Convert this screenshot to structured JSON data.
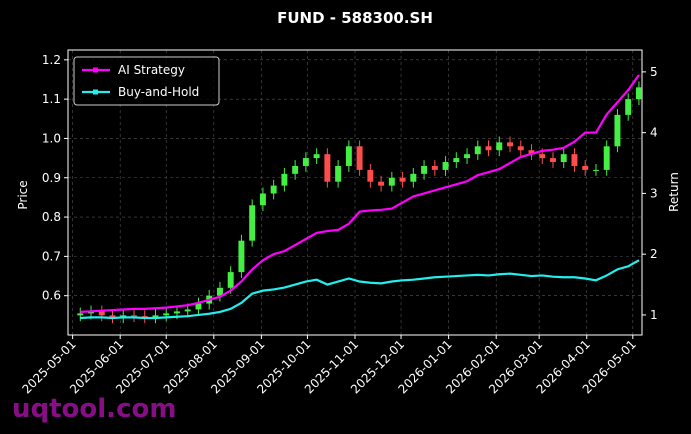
{
  "chart_data": {
    "type": "candlestick",
    "title": "FUND - 588300.SH",
    "ylabel": "Price",
    "y2label": "Return",
    "watermark": "uqtool.com",
    "up_color": "#44ee44",
    "down_color": "#ff4d4d",
    "grid": true,
    "legend": "upper left",
    "xlim": [
      "2025-04-28",
      "2026-05-07"
    ],
    "xticks": [
      "2025-05-01",
      "2025-06-01",
      "2025-07-01",
      "2025-08-01",
      "2025-09-01",
      "2025-10-01",
      "2025-11-01",
      "2025-12-01",
      "2026-01-01",
      "2026-02-01",
      "2026-03-01",
      "2026-04-01",
      "2026-05-01"
    ],
    "ylim": [
      0.5,
      1.225
    ],
    "yticks": [
      0.6,
      0.7,
      0.8,
      0.9,
      {
        "value": 1,
        "label": "1.0"
      },
      1.1,
      1.2
    ],
    "y2lim": [
      0.67,
      5.36
    ],
    "y2ticks": [
      1,
      2,
      3,
      4,
      5
    ],
    "x": [
      "2025-05-06",
      "2025-05-13",
      "2025-05-20",
      "2025-05-27",
      "2025-06-03",
      "2025-06-10",
      "2025-06-17",
      "2025-06-24",
      "2025-07-01",
      "2025-07-08",
      "2025-07-15",
      "2025-07-22",
      "2025-07-29",
      "2025-08-05",
      "2025-08-12",
      "2025-08-19",
      "2025-08-26",
      "2025-09-02",
      "2025-09-09",
      "2025-09-16",
      "2025-09-23",
      "2025-09-30",
      "2025-10-07",
      "2025-10-14",
      "2025-10-21",
      "2025-10-28",
      "2025-11-04",
      "2025-11-11",
      "2025-11-18",
      "2025-11-25",
      "2025-12-02",
      "2025-12-09",
      "2025-12-16",
      "2025-12-23",
      "2025-12-30",
      "2026-01-06",
      "2026-01-13",
      "2026-01-20",
      "2026-01-27",
      "2026-02-03",
      "2026-02-10",
      "2026-02-17",
      "2026-02-24",
      "2026-03-03",
      "2026-03-10",
      "2026-03-17",
      "2026-03-24",
      "2026-03-31",
      "2026-04-07",
      "2026-04-14",
      "2026-04-21",
      "2026-04-28",
      "2026-05-05"
    ],
    "open": [
      0.55,
      0.555,
      0.56,
      0.55,
      0.545,
      0.55,
      0.548,
      0.545,
      0.55,
      0.555,
      0.56,
      0.565,
      0.58,
      0.6,
      0.62,
      0.66,
      0.74,
      0.83,
      0.86,
      0.88,
      0.91,
      0.93,
      0.95,
      0.96,
      0.89,
      0.93,
      0.98,
      0.92,
      0.89,
      0.88,
      0.9,
      0.89,
      0.91,
      0.93,
      0.92,
      0.94,
      0.95,
      0.96,
      0.98,
      0.97,
      0.99,
      0.98,
      0.97,
      0.96,
      0.95,
      0.94,
      0.96,
      0.93,
      0.92,
      0.92,
      0.98,
      1.06,
      1.1
    ],
    "high": [
      0.57,
      0.575,
      0.575,
      0.565,
      0.565,
      0.565,
      0.563,
      0.565,
      0.57,
      0.575,
      0.58,
      0.595,
      0.615,
      0.635,
      0.675,
      0.755,
      0.845,
      0.875,
      0.895,
      0.925,
      0.945,
      0.965,
      0.975,
      0.975,
      0.945,
      0.995,
      0.995,
      0.935,
      0.905,
      0.915,
      0.915,
      0.925,
      0.945,
      0.945,
      0.955,
      0.965,
      0.975,
      0.995,
      0.995,
      1.005,
      1.005,
      0.995,
      0.985,
      0.975,
      0.965,
      0.975,
      0.975,
      0.945,
      0.935,
      0.995,
      1.075,
      1.115,
      1.145
    ],
    "low": [
      0.535,
      0.54,
      0.535,
      0.53,
      0.53,
      0.533,
      0.53,
      0.53,
      0.535,
      0.54,
      0.545,
      0.55,
      0.565,
      0.585,
      0.605,
      0.645,
      0.725,
      0.815,
      0.845,
      0.865,
      0.895,
      0.915,
      0.935,
      0.875,
      0.875,
      0.915,
      0.905,
      0.875,
      0.865,
      0.865,
      0.875,
      0.875,
      0.895,
      0.905,
      0.905,
      0.925,
      0.935,
      0.945,
      0.955,
      0.955,
      0.965,
      0.955,
      0.945,
      0.935,
      0.925,
      0.925,
      0.915,
      0.905,
      0.905,
      0.905,
      0.965,
      1.045,
      1.085
    ],
    "close": [
      0.555,
      0.56,
      0.55,
      0.545,
      0.55,
      0.548,
      0.545,
      0.55,
      0.555,
      0.56,
      0.565,
      0.58,
      0.6,
      0.62,
      0.66,
      0.74,
      0.83,
      0.86,
      0.88,
      0.91,
      0.93,
      0.95,
      0.96,
      0.89,
      0.93,
      0.98,
      0.92,
      0.89,
      0.88,
      0.9,
      0.89,
      0.91,
      0.93,
      0.92,
      0.94,
      0.95,
      0.96,
      0.98,
      0.97,
      0.99,
      0.98,
      0.97,
      0.96,
      0.95,
      0.94,
      0.96,
      0.93,
      0.92,
      0.92,
      0.98,
      1.06,
      1.1,
      1.13
    ],
    "series": [
      {
        "name": "AI Strategy",
        "color": "#ff00ff",
        "axis": "y2",
        "values": [
          1.05,
          1.06,
          1.07,
          1.08,
          1.09,
          1.1,
          1.1,
          1.11,
          1.12,
          1.14,
          1.16,
          1.2,
          1.25,
          1.3,
          1.4,
          1.55,
          1.75,
          1.9,
          2.0,
          2.05,
          2.15,
          2.25,
          2.35,
          2.38,
          2.4,
          2.5,
          2.7,
          2.72,
          2.73,
          2.75,
          2.85,
          2.95,
          3.0,
          3.05,
          3.1,
          3.15,
          3.2,
          3.3,
          3.35,
          3.4,
          3.5,
          3.6,
          3.65,
          3.7,
          3.72,
          3.75,
          3.85,
          4.0,
          4.0,
          4.3,
          4.5,
          4.7,
          4.95
        ]
      },
      {
        "name": "Buy-and-Hold",
        "color": "#22eeee",
        "axis": "y2",
        "values": [
          0.95,
          0.96,
          0.96,
          0.95,
          0.96,
          0.96,
          0.95,
          0.95,
          0.96,
          0.97,
          0.98,
          1.0,
          1.02,
          1.05,
          1.1,
          1.2,
          1.35,
          1.4,
          1.42,
          1.45,
          1.5,
          1.55,
          1.58,
          1.5,
          1.55,
          1.6,
          1.55,
          1.53,
          1.52,
          1.55,
          1.57,
          1.58,
          1.6,
          1.62,
          1.63,
          1.64,
          1.65,
          1.66,
          1.65,
          1.67,
          1.68,
          1.66,
          1.64,
          1.65,
          1.63,
          1.62,
          1.62,
          1.6,
          1.57,
          1.65,
          1.75,
          1.8,
          1.9
        ]
      }
    ]
  }
}
